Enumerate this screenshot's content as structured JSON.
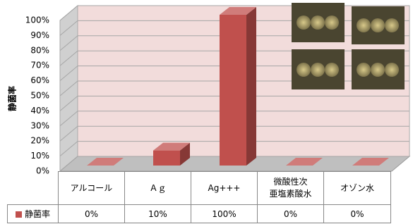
{
  "chart_data": {
    "type": "bar",
    "y_label": "静菌率",
    "categories": [
      "アルコール",
      "Ａｇ",
      "Ag+++",
      "微酸性次\n亜塩素酸水",
      "オゾン水"
    ],
    "series": [
      {
        "name": "静菌率",
        "color": "#c0504d",
        "values": [
          0,
          10,
          100,
          0,
          0
        ],
        "value_labels": [
          "0%",
          "10%",
          "100%",
          "0%",
          "0%"
        ]
      }
    ],
    "ylim": [
      0,
      100
    ],
    "yticks": [
      {
        "value": 0,
        "label": "0%"
      },
      {
        "value": 10,
        "label": "10%"
      },
      {
        "value": 20,
        "label": "20%"
      },
      {
        "value": 30,
        "label": "30%"
      },
      {
        "value": 40,
        "label": "40%"
      },
      {
        "value": 50,
        "label": "50%"
      },
      {
        "value": 60,
        "label": "60%"
      },
      {
        "value": 70,
        "label": "70%"
      },
      {
        "value": 80,
        "label": "80%"
      },
      {
        "value": 90,
        "label": "90%"
      },
      {
        "value": 100,
        "label": "100%"
      }
    ],
    "grid": true
  }
}
